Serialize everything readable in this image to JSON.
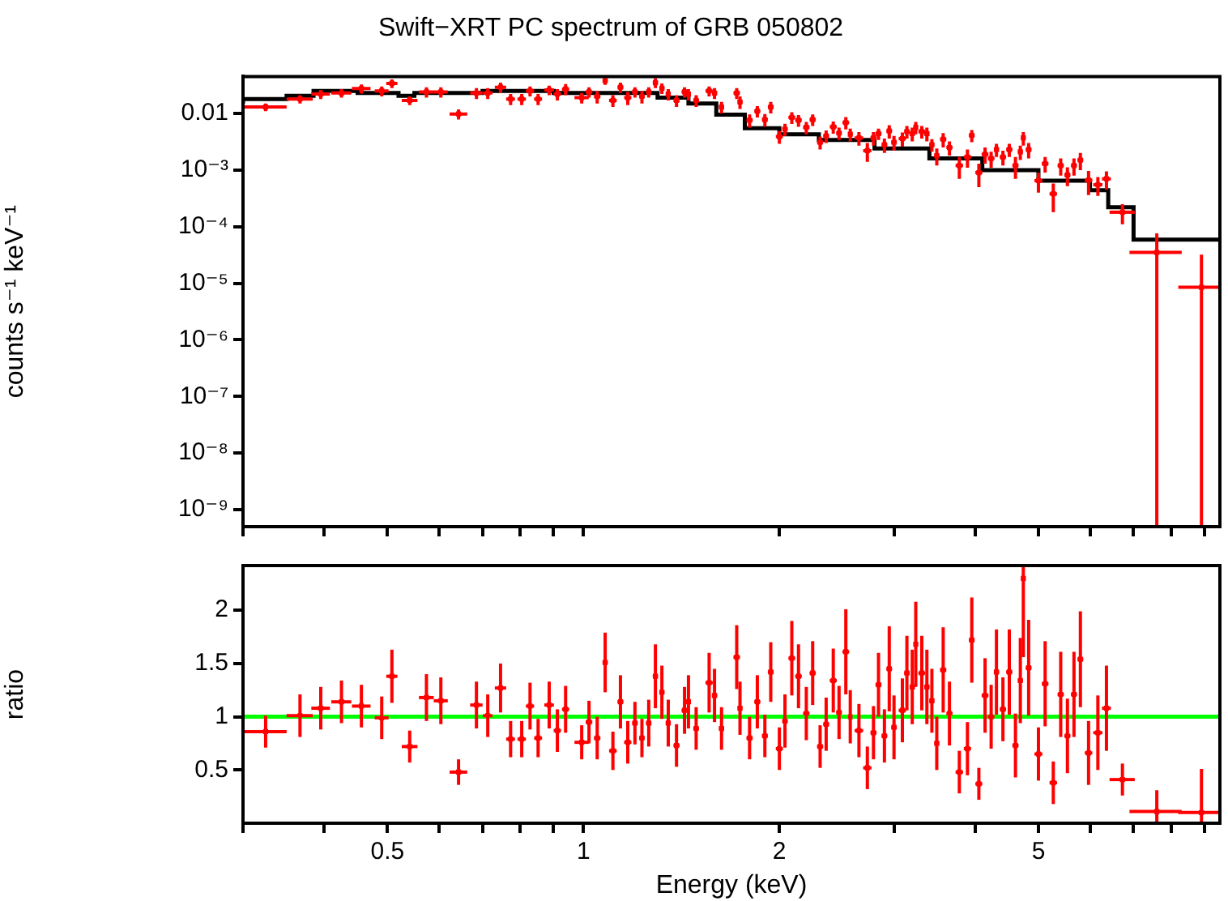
{
  "chart_data": [
    {
      "type": "scatter",
      "title": "Swift−XRT PC spectrum of GRB 050802",
      "ylabel": "counts s⁻¹ keV⁻¹",
      "log": "xy",
      "xlim": [
        0.3,
        9.5
      ],
      "ylim": [
        5e-10,
        0.045
      ],
      "tick_labels": "y",
      "xticks": [
        {
          "value": 0.3,
          "label": null
        },
        {
          "value": 0.4,
          "label": null
        },
        0.5,
        {
          "value": 0.6,
          "label": null
        },
        {
          "value": 0.7,
          "label": null
        },
        {
          "value": 0.8,
          "label": null
        },
        {
          "value": 0.9,
          "label": null
        },
        1,
        2,
        {
          "value": 3,
          "label": null
        },
        {
          "value": 4,
          "label": null
        },
        5,
        {
          "value": 6,
          "label": null
        },
        {
          "value": 7,
          "label": null
        },
        {
          "value": 8,
          "label": null
        },
        {
          "value": 9,
          "label": null
        }
      ],
      "yticks": [
        {
          "value": 1e-09,
          "label": "10⁻⁹"
        },
        {
          "value": 1e-08,
          "label": "10⁻⁸"
        },
        {
          "value": 1e-07,
          "label": "10⁻⁷"
        },
        {
          "value": 1e-06,
          "label": "10⁻⁶"
        },
        {
          "value": 1e-05,
          "label": "10⁻⁵"
        },
        {
          "value": 0.0001,
          "label": "10⁻⁴"
        },
        {
          "value": 0.001,
          "label": "10⁻³"
        },
        0.01
      ],
      "series": [
        {
          "type": "scatter",
          "color": "#ff0000",
          "x": [
            0.325,
            0.367,
            0.395,
            0.425,
            0.456,
            0.49,
            0.508,
            0.541,
            0.574,
            0.604,
            0.643,
            0.685,
            0.713,
            0.746,
            0.773,
            0.804,
            0.828,
            0.852,
            0.886,
            0.912,
            0.939,
            0.994,
            1.02,
            1.05,
            1.08,
            1.11,
            1.14,
            1.17,
            1.2,
            1.23,
            1.26,
            1.29,
            1.32,
            1.35,
            1.39,
            1.43,
            1.45,
            1.49,
            1.56,
            1.59,
            1.63,
            1.72,
            1.74,
            1.8,
            1.85,
            1.9,
            1.94,
            2.0,
            2.04,
            2.09,
            2.14,
            2.2,
            2.25,
            2.31,
            2.36,
            2.42,
            2.47,
            2.53,
            2.57,
            2.65,
            2.73,
            2.79,
            2.84,
            2.9,
            2.95,
            3.0,
            3.09,
            3.14,
            3.2,
            3.24,
            3.31,
            3.37,
            3.43,
            3.49,
            3.57,
            3.65,
            3.78,
            3.89,
            3.95,
            4.05,
            4.14,
            4.23,
            4.31,
            4.41,
            4.51,
            4.61,
            4.69,
            4.74,
            4.83,
            5.0,
            5.12,
            5.27,
            5.41,
            5.54,
            5.67,
            5.8,
            5.97,
            6.17,
            6.36,
            6.73,
            7.6,
            8.9
          ],
          "values": [
            0.013,
            0.018,
            0.022,
            0.023,
            0.0275,
            0.025,
            0.034,
            0.017,
            0.024,
            0.024,
            0.0098,
            0.023,
            0.023,
            0.029,
            0.018,
            0.018,
            0.025,
            0.018,
            0.026,
            0.022,
            0.027,
            0.019,
            0.024,
            0.02,
            0.038,
            0.017,
            0.029,
            0.019,
            0.024,
            0.02,
            0.024,
            0.035,
            0.028,
            0.022,
            0.017,
            0.024,
            0.022,
            0.017,
            0.025,
            0.023,
            0.013,
            0.023,
            0.016,
            0.0076,
            0.011,
            0.0078,
            0.013,
            0.0039,
            0.0053,
            0.0085,
            0.0076,
            0.0057,
            0.0078,
            0.0031,
            0.004,
            0.0058,
            0.0045,
            0.0069,
            0.0043,
            0.0037,
            0.0022,
            0.0037,
            0.0044,
            0.0028,
            0.0049,
            0.0031,
            0.0036,
            0.0048,
            0.0044,
            0.0057,
            0.0048,
            0.0044,
            0.0028,
            0.0018,
            0.0035,
            0.0025,
            0.0012,
            0.0017,
            0.0041,
            0.0009,
            0.0019,
            0.0016,
            0.0023,
            0.0017,
            0.0023,
            0.0012,
            0.0021,
            0.0037,
            0.0023,
            0.00065,
            0.0013,
            0.00038,
            0.0012,
            0.00082,
            0.0012,
            0.0015,
            0.00066,
            0.00055,
            0.0007,
            0.00018,
            3.5e-05,
            8.5e-06
          ],
          "errors": [
            0.002,
            0.003,
            0.004,
            0.004,
            0.005,
            0.005,
            0.006,
            0.003,
            0.005,
            0.005,
            0.002,
            0.005,
            0.005,
            0.006,
            0.004,
            0.004,
            0.005,
            0.004,
            0.005,
            0.005,
            0.006,
            0.004,
            0.005,
            0.005,
            0.006,
            0.004,
            0.006,
            0.005,
            0.005,
            0.005,
            0.005,
            0.007,
            0.006,
            0.005,
            0.004,
            0.005,
            0.005,
            0.004,
            0.005,
            0.005,
            0.003,
            0.005,
            0.004,
            0.002,
            0.0025,
            0.002,
            0.003,
            0.001,
            0.0013,
            0.002,
            0.0018,
            0.0014,
            0.0018,
            0.0008,
            0.001,
            0.0014,
            0.0011,
            0.0017,
            0.0011,
            0.001,
            0.0008,
            0.001,
            0.001,
            0.0008,
            0.0013,
            0.0009,
            0.001,
            0.0012,
            0.0012,
            0.0014,
            0.0012,
            0.0012,
            0.0007,
            0.0006,
            0.001,
            0.0007,
            0.0005,
            0.0006,
            0.001,
            0.0004,
            0.0006,
            0.0005,
            0.0006,
            0.0005,
            0.0006,
            0.0005,
            0.0006,
            0.001,
            0.0007,
            0.00025,
            0.0004,
            0.0002,
            0.0004,
            0.0003,
            0.0004,
            0.0005,
            0.0003,
            0.0002,
            0.00025,
            7e-05,
            [
              5e-10,
              7.6e-05
            ],
            [
              5e-10,
              3.2e-05
            ]
          ],
          "xerrors": [
            0.025,
            0.017,
            0.013,
            0.015,
            0.015,
            0.012,
            0.01,
            0.015,
            0.015,
            0.015,
            0.02,
            0.015,
            0.012,
            0.015,
            0.012,
            0.012,
            0.012,
            0.012,
            0.015,
            0.012,
            0.012,
            0.025,
            0.012,
            0.012,
            0.01,
            0.015,
            0.012,
            0.015,
            0.012,
            0.012,
            0.012,
            0.012,
            0.012,
            0.012,
            0.015,
            0.015,
            0.01,
            0.015,
            0.02,
            0.015,
            0.015,
            0.02,
            0.015,
            0.02,
            0.02,
            0.02,
            0.02,
            0.025,
            0.02,
            0.025,
            0.025,
            0.025,
            0.025,
            0.025,
            0.025,
            0.03,
            0.025,
            0.03,
            0.02,
            0.04,
            0.04,
            0.03,
            0.03,
            0.03,
            0.03,
            0.03,
            0.04,
            0.03,
            0.03,
            0.02,
            0.04,
            0.03,
            0.03,
            0.03,
            0.04,
            0.04,
            0.05,
            0.05,
            0.04,
            0.05,
            0.05,
            0.05,
            0.04,
            0.05,
            0.05,
            0.05,
            0.04,
            0.03,
            0.05,
            0.07,
            0.06,
            0.07,
            0.06,
            0.06,
            0.06,
            0.06,
            0.08,
            0.1,
            0.1,
            0.3,
            [
              6.9,
              8.3
            ],
            [
              8.2,
              9.5
            ]
          ]
        },
        {
          "type": "step",
          "color": "#000000",
          "x": [
            0.3,
            0.35,
            0.385,
            0.45,
            0.52,
            0.55,
            0.7,
            0.9,
            1.3,
            1.45,
            1.6,
            1.77,
            2.0,
            2.3,
            2.8,
            3.4,
            4.1,
            5.0,
            6.0,
            6.4,
            7.0,
            8.2,
            9.5
          ],
          "values": [
            0.015,
            0.018,
            0.0205,
            0.025,
            0.023,
            0.0205,
            0.023,
            0.025,
            0.023,
            0.019,
            0.015,
            0.0095,
            0.0055,
            0.0043,
            0.0034,
            0.0024,
            0.0016,
            0.001,
            0.00065,
            0.00044,
            0.00022,
            5.9e-05,
            5.9e-05
          ]
        }
      ]
    },
    {
      "type": "scatter",
      "xlabel": "Energy (keV)",
      "ylabel": "ratio",
      "log": "x",
      "xlim": [
        0.3,
        9.5
      ],
      "ylim": [
        0,
        2.42
      ],
      "xticks": [
        {
          "value": 0.3,
          "label": null
        },
        {
          "value": 0.4,
          "label": null
        },
        0.5,
        {
          "value": 0.6,
          "label": null
        },
        {
          "value": 0.7,
          "label": null
        },
        {
          "value": 0.8,
          "label": null
        },
        {
          "value": 0.9,
          "label": null
        },
        1,
        2,
        {
          "value": 3,
          "label": null
        },
        {
          "value": 4,
          "label": null
        },
        5,
        {
          "value": 6,
          "label": null
        },
        {
          "value": 7,
          "label": null
        },
        {
          "value": 8,
          "label": null
        },
        {
          "value": 9,
          "label": null
        }
      ],
      "yticks": [
        0.5,
        1,
        1.5,
        2
      ],
      "ref_lines": [
        {
          "axis": "y",
          "value": 1,
          "color": "#00ff00"
        }
      ],
      "series": [
        {
          "type": "scatter",
          "color": "#ff0000",
          "x": [
            0.325,
            0.367,
            0.395,
            0.425,
            0.456,
            0.49,
            0.508,
            0.541,
            0.574,
            0.604,
            0.643,
            0.685,
            0.713,
            0.746,
            0.773,
            0.804,
            0.828,
            0.852,
            0.886,
            0.912,
            0.939,
            0.994,
            1.02,
            1.05,
            1.08,
            1.11,
            1.14,
            1.17,
            1.2,
            1.23,
            1.26,
            1.29,
            1.32,
            1.35,
            1.39,
            1.43,
            1.45,
            1.49,
            1.56,
            1.59,
            1.63,
            1.72,
            1.74,
            1.8,
            1.85,
            1.9,
            1.94,
            2.0,
            2.04,
            2.09,
            2.14,
            2.2,
            2.25,
            2.31,
            2.36,
            2.42,
            2.47,
            2.53,
            2.57,
            2.65,
            2.73,
            2.79,
            2.84,
            2.9,
            2.95,
            3.0,
            3.09,
            3.14,
            3.2,
            3.24,
            3.31,
            3.37,
            3.43,
            3.49,
            3.57,
            3.65,
            3.78,
            3.89,
            3.95,
            4.05,
            4.14,
            4.23,
            4.31,
            4.41,
            4.51,
            4.61,
            4.69,
            4.74,
            4.83,
            5.0,
            5.12,
            5.27,
            5.41,
            5.54,
            5.67,
            5.8,
            5.97,
            6.17,
            6.36,
            6.73,
            7.6,
            8.9
          ],
          "values": [
            0.86,
            1.01,
            1.08,
            1.14,
            1.1,
            0.99,
            1.38,
            0.72,
            1.18,
            1.15,
            0.48,
            1.11,
            1.01,
            1.27,
            0.79,
            0.79,
            1.1,
            0.8,
            1.11,
            0.87,
            1.07,
            0.76,
            0.95,
            0.8,
            1.51,
            0.68,
            1.14,
            0.76,
            0.94,
            0.8,
            0.94,
            1.38,
            1.23,
            0.94,
            0.73,
            1.06,
            1.14,
            0.89,
            1.32,
            1.2,
            0.89,
            1.56,
            1.08,
            0.8,
            1.14,
            0.82,
            1.42,
            0.7,
            0.96,
            1.55,
            1.38,
            1.03,
            1.41,
            0.72,
            0.93,
            1.34,
            1.04,
            1.61,
            1.0,
            0.87,
            0.52,
            0.85,
            1.3,
            0.82,
            1.45,
            0.9,
            1.06,
            1.41,
            1.28,
            1.68,
            1.41,
            1.28,
            1.15,
            0.75,
            1.44,
            1.03,
            0.48,
            0.7,
            1.72,
            0.37,
            1.2,
            1.0,
            1.42,
            1.07,
            1.42,
            0.73,
            1.34,
            2.3,
            1.46,
            0.65,
            1.31,
            0.38,
            1.21,
            0.82,
            1.21,
            1.54,
            0.66,
            0.85,
            1.08,
            0.41,
            0.11,
            0.1
          ],
          "errors": [
            0.15,
            0.2,
            0.2,
            0.2,
            0.2,
            0.2,
            0.25,
            0.15,
            0.22,
            0.22,
            0.12,
            0.22,
            0.2,
            0.23,
            0.17,
            0.17,
            0.22,
            0.18,
            0.22,
            0.2,
            0.22,
            0.16,
            0.2,
            0.2,
            0.28,
            0.18,
            0.25,
            0.2,
            0.2,
            0.18,
            0.22,
            0.3,
            0.25,
            0.22,
            0.2,
            0.22,
            0.25,
            0.2,
            0.28,
            0.25,
            0.2,
            0.3,
            0.25,
            0.2,
            0.25,
            0.2,
            0.28,
            0.2,
            0.25,
            0.35,
            0.3,
            0.25,
            0.3,
            0.2,
            0.25,
            0.3,
            0.25,
            0.4,
            0.25,
            0.25,
            0.2,
            0.25,
            0.3,
            0.25,
            0.4,
            0.3,
            0.3,
            0.35,
            0.35,
            0.4,
            0.35,
            0.35,
            0.3,
            0.25,
            0.4,
            0.3,
            0.2,
            0.25,
            0.4,
            0.15,
            0.35,
            0.3,
            0.4,
            0.3,
            0.4,
            0.3,
            0.4,
            [
              1.56,
              2.42
            ],
            0.45,
            0.25,
            0.4,
            0.2,
            0.4,
            0.35,
            0.4,
            0.45,
            0.3,
            0.35,
            0.4,
            0.15,
            [
              0,
              0.31
            ],
            [
              0,
              0.51
            ]
          ],
          "xerrors": [
            0.025,
            0.017,
            0.013,
            0.015,
            0.015,
            0.012,
            0.01,
            0.015,
            0.015,
            0.015,
            0.02,
            0.015,
            0.012,
            0.015,
            0.012,
            0.012,
            0.012,
            0.012,
            0.015,
            0.012,
            0.012,
            0.025,
            0.012,
            0.012,
            0.01,
            0.015,
            0.012,
            0.015,
            0.012,
            0.012,
            0.012,
            0.012,
            0.012,
            0.012,
            0.015,
            0.015,
            0.01,
            0.015,
            0.02,
            0.015,
            0.015,
            0.02,
            0.015,
            0.02,
            0.02,
            0.02,
            0.02,
            0.025,
            0.02,
            0.025,
            0.025,
            0.025,
            0.025,
            0.025,
            0.025,
            0.03,
            0.025,
            0.03,
            0.02,
            0.04,
            0.04,
            0.03,
            0.03,
            0.03,
            0.03,
            0.03,
            0.04,
            0.03,
            0.03,
            0.02,
            0.04,
            0.03,
            0.03,
            0.03,
            0.04,
            0.04,
            0.05,
            0.05,
            0.04,
            0.05,
            0.05,
            0.05,
            0.04,
            0.05,
            0.05,
            0.05,
            0.04,
            0.03,
            0.05,
            0.07,
            0.06,
            0.07,
            0.06,
            0.06,
            0.06,
            0.06,
            0.08,
            0.1,
            0.1,
            0.3,
            [
              6.9,
              8.3
            ],
            [
              8.2,
              9.5
            ]
          ]
        }
      ]
    }
  ]
}
